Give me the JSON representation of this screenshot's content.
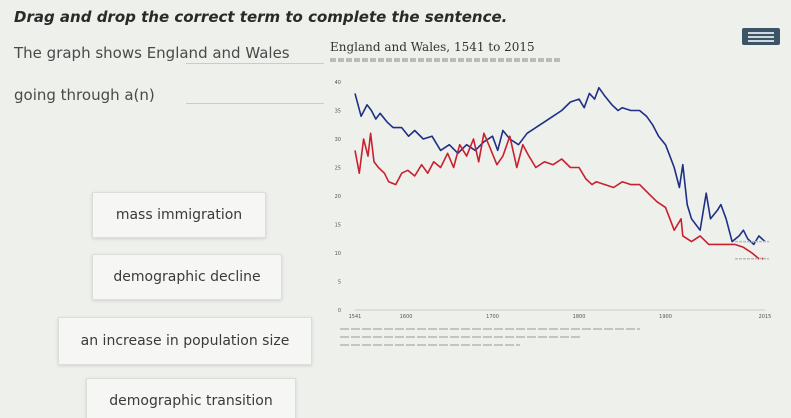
{
  "question": {
    "prompt": "Drag and drop the correct term to complete the sentence.",
    "sentence_part1": "The graph shows England and Wales",
    "sentence_part2": "going through a(n)"
  },
  "options": [
    "mass immigration",
    "demographic decline",
    "an increase in population size",
    "demographic transition"
  ],
  "chart": {
    "title": "England and Wales, 1541 to 2015"
  },
  "chart_data": {
    "type": "line",
    "title": "England and Wales, 1541 to 2015",
    "ylim": [
      0,
      40
    ],
    "yticks": [
      "0",
      "5",
      "10",
      "15",
      "20",
      "25",
      "30",
      "35",
      "40"
    ],
    "xlim": [
      1541,
      2015
    ],
    "xticks": [
      "1541",
      "1600",
      "1700",
      "1800",
      "1900",
      "2015"
    ],
    "colors": {
      "birth_rate": "#1f2f86",
      "death_rate": "#c8202e"
    },
    "series": [
      {
        "color": "#1f2f86",
        "points": [
          [
            1541,
            38
          ],
          [
            1548,
            34
          ],
          [
            1555,
            36
          ],
          [
            1560,
            35
          ],
          [
            1565,
            33.5
          ],
          [
            1570,
            34.5
          ],
          [
            1578,
            33
          ],
          [
            1585,
            32
          ],
          [
            1595,
            32
          ],
          [
            1603,
            30.5
          ],
          [
            1610,
            31.5
          ],
          [
            1620,
            30
          ],
          [
            1630,
            30.5
          ],
          [
            1640,
            28
          ],
          [
            1650,
            29
          ],
          [
            1660,
            27.5
          ],
          [
            1670,
            29
          ],
          [
            1680,
            28
          ],
          [
            1690,
            29.5
          ],
          [
            1700,
            30.5
          ],
          [
            1706,
            28
          ],
          [
            1712,
            31.5
          ],
          [
            1720,
            30
          ],
          [
            1730,
            29
          ],
          [
            1740,
            31
          ],
          [
            1750,
            32
          ],
          [
            1760,
            33
          ],
          [
            1770,
            34
          ],
          [
            1780,
            35
          ],
          [
            1790,
            36.5
          ],
          [
            1800,
            37
          ],
          [
            1806,
            35.5
          ],
          [
            1812,
            38
          ],
          [
            1818,
            37
          ],
          [
            1823,
            39
          ],
          [
            1830,
            37.5
          ],
          [
            1838,
            36
          ],
          [
            1845,
            35
          ],
          [
            1850,
            35.5
          ],
          [
            1860,
            35
          ],
          [
            1870,
            35
          ],
          [
            1878,
            34
          ],
          [
            1885,
            32.5
          ],
          [
            1892,
            30.5
          ],
          [
            1900,
            29
          ],
          [
            1905,
            27
          ],
          [
            1910,
            25
          ],
          [
            1916,
            21.5
          ],
          [
            1920,
            25.5
          ],
          [
            1925,
            18.5
          ],
          [
            1930,
            16
          ],
          [
            1935,
            15
          ],
          [
            1940,
            14
          ],
          [
            1947,
            20.5
          ],
          [
            1952,
            16
          ],
          [
            1960,
            17.5
          ],
          [
            1964,
            18.5
          ],
          [
            1970,
            16
          ],
          [
            1977,
            12
          ],
          [
            1985,
            13
          ],
          [
            1990,
            14
          ],
          [
            1995,
            12.5
          ],
          [
            2002,
            11.5
          ],
          [
            2008,
            13
          ],
          [
            2015,
            12
          ]
        ]
      },
      {
        "color": "#c8202e",
        "points": [
          [
            1541,
            28
          ],
          [
            1546,
            24
          ],
          [
            1551,
            30
          ],
          [
            1556,
            27
          ],
          [
            1559,
            31
          ],
          [
            1563,
            26
          ],
          [
            1568,
            25
          ],
          [
            1575,
            24
          ],
          [
            1580,
            22.5
          ],
          [
            1588,
            22
          ],
          [
            1595,
            24
          ],
          [
            1602,
            24.5
          ],
          [
            1610,
            23.5
          ],
          [
            1618,
            25.5
          ],
          [
            1625,
            24
          ],
          [
            1632,
            26
          ],
          [
            1640,
            25
          ],
          [
            1648,
            27.5
          ],
          [
            1655,
            25
          ],
          [
            1662,
            29
          ],
          [
            1670,
            27
          ],
          [
            1678,
            30
          ],
          [
            1684,
            26
          ],
          [
            1690,
            31
          ],
          [
            1697,
            28.5
          ],
          [
            1705,
            25.5
          ],
          [
            1712,
            27
          ],
          [
            1720,
            30.5
          ],
          [
            1728,
            25
          ],
          [
            1735,
            29
          ],
          [
            1742,
            27
          ],
          [
            1750,
            25
          ],
          [
            1760,
            26
          ],
          [
            1770,
            25.5
          ],
          [
            1780,
            26.5
          ],
          [
            1790,
            25
          ],
          [
            1800,
            25
          ],
          [
            1808,
            23
          ],
          [
            1815,
            22
          ],
          [
            1820,
            22.5
          ],
          [
            1830,
            22
          ],
          [
            1840,
            21.5
          ],
          [
            1850,
            22.5
          ],
          [
            1860,
            22
          ],
          [
            1870,
            22
          ],
          [
            1880,
            20.5
          ],
          [
            1890,
            19
          ],
          [
            1900,
            18
          ],
          [
            1905,
            16
          ],
          [
            1910,
            14
          ],
          [
            1918,
            16
          ],
          [
            1920,
            13
          ],
          [
            1930,
            12
          ],
          [
            1940,
            13
          ],
          [
            1950,
            11.5
          ],
          [
            1960,
            11.5
          ],
          [
            1970,
            11.5
          ],
          [
            1980,
            11.5
          ],
          [
            1990,
            11
          ],
          [
            2000,
            10
          ],
          [
            2008,
            9
          ],
          [
            2015,
            9
          ]
        ]
      }
    ]
  }
}
